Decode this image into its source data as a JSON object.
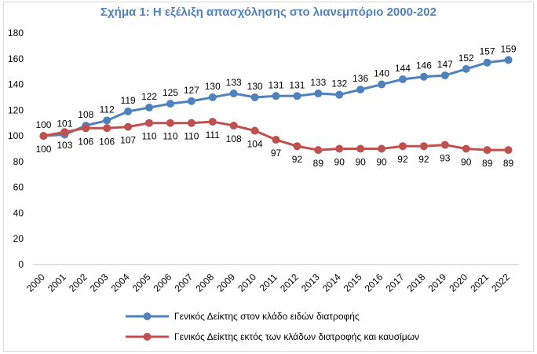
{
  "chart_data": {
    "type": "line",
    "title": "Σχήμα 1: Η εξέλιξη απασχόλησης στο λιανεμπόριο 2000-202",
    "xlabel": "",
    "ylabel": "",
    "ylim": [
      0,
      180
    ],
    "yticks": [
      0,
      20,
      40,
      60,
      80,
      100,
      120,
      140,
      160,
      180
    ],
    "grid": false,
    "legend_position": "bottom",
    "categories": [
      "2000",
      "2001",
      "2002",
      "2003",
      "2004",
      "2005",
      "2006",
      "2007",
      "2008",
      "2009",
      "2010",
      "2011",
      "2012",
      "2013",
      "2014",
      "2015",
      "2016",
      "2017",
      "2018",
      "2019",
      "2020",
      "2021",
      "2022"
    ],
    "series": [
      {
        "name": "Γενικός Δείκτης στον κλάδο ειδών διατροφής",
        "color": "#4f81bd",
        "label_position": "above",
        "values": [
          100,
          101,
          108,
          112,
          119,
          122,
          125,
          127,
          130,
          133,
          130,
          131,
          131,
          133,
          132,
          136,
          140,
          144,
          146,
          147,
          152,
          157,
          159
        ]
      },
      {
        "name": "Γενικός Δείκτης εκτός των κλάδων διατροφής και καυσίμων",
        "color": "#c0504d",
        "label_position": "below",
        "values": [
          100,
          103,
          106,
          106,
          107,
          110,
          110,
          110,
          111,
          108,
          104,
          97,
          92,
          89,
          90,
          90,
          90,
          92,
          92,
          93,
          90,
          89,
          89
        ]
      }
    ]
  }
}
